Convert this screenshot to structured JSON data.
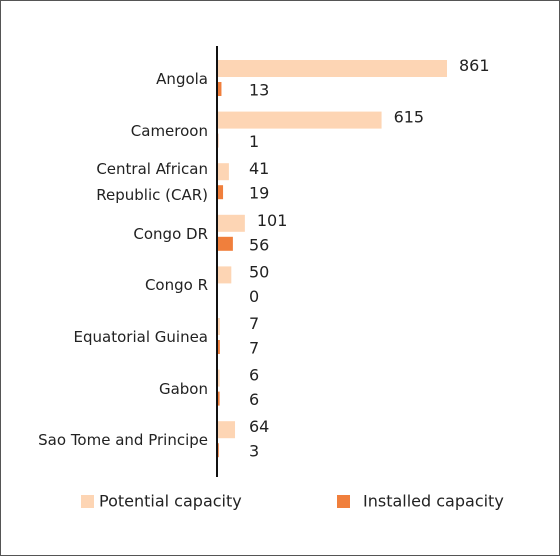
{
  "chart_data": {
    "type": "barh",
    "categories": [
      "Angola",
      "Cameroon",
      "Central African Republic (CAR)",
      "Congo DR",
      "Congo R",
      "Equatorial Guinea",
      "Gabon",
      "Sao Tome and Principe"
    ],
    "series": [
      {
        "name": "Potential capacity",
        "color": "#fdd5b4",
        "values": [
          861,
          615,
          41,
          101,
          50,
          7,
          6,
          64
        ]
      },
      {
        "name": "Installed capacity",
        "color": "#f07f3c",
        "values": [
          13,
          1,
          19,
          56,
          0,
          7,
          6,
          3
        ]
      }
    ],
    "legend": "bottom"
  }
}
